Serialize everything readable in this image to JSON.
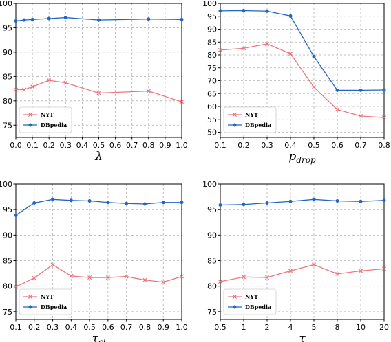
{
  "chart_data": [
    {
      "type": "line",
      "xlabel": "λ",
      "xlabel_sub": "",
      "x": [
        0.0,
        0.05,
        0.1,
        0.2,
        0.3,
        0.5,
        0.8,
        1.0
      ],
      "xlim": [
        0.0,
        1.0
      ],
      "xticks": [
        "0.0",
        "0.1",
        "0.2",
        "0.3",
        "0.4",
        "0.5",
        "0.6",
        "0.7",
        "0.8",
        "0.9",
        "1.0"
      ],
      "xtick_values": [
        0.0,
        0.1,
        0.2,
        0.3,
        0.4,
        0.5,
        0.6,
        0.7,
        0.8,
        0.9,
        1.0
      ],
      "ylim": [
        72.5,
        100
      ],
      "yticks": [
        75,
        80,
        85,
        90,
        95,
        100
      ],
      "grid": true,
      "legend_position": "lower-left",
      "series": [
        {
          "name": "NYT",
          "values": [
            82.3,
            82.3,
            82.9,
            84.2,
            83.7,
            81.6,
            82.0,
            79.8
          ]
        },
        {
          "name": "DBpedia",
          "values": [
            96.4,
            96.6,
            96.7,
            96.9,
            97.1,
            96.6,
            96.8,
            96.7
          ]
        }
      ]
    },
    {
      "type": "line",
      "xlabel": "p",
      "xlabel_sub": "drop",
      "x": [
        0.1,
        0.2,
        0.3,
        0.4,
        0.5,
        0.6,
        0.7,
        0.8
      ],
      "xlim": [
        0.1,
        0.8
      ],
      "xticks": [
        "0.1",
        "0.2",
        "0.3",
        "0.4",
        "0.5",
        "0.6",
        "0.7",
        "0.8"
      ],
      "xtick_values": [
        0.1,
        0.2,
        0.3,
        0.4,
        0.5,
        0.6,
        0.7,
        0.8
      ],
      "ylim": [
        48,
        100
      ],
      "yticks": [
        50,
        55,
        60,
        65,
        70,
        75,
        80,
        85,
        90,
        95,
        100
      ],
      "grid": true,
      "legend_position": "lower-left",
      "series": [
        {
          "name": "NYT",
          "values": [
            81.9,
            82.6,
            84.3,
            80.5,
            67.5,
            58.8,
            56.3,
            55.7
          ]
        },
        {
          "name": "DBpedia",
          "values": [
            97.1,
            97.2,
            97.0,
            95.1,
            79.4,
            66.3,
            66.3,
            66.4
          ]
        }
      ]
    },
    {
      "type": "line",
      "xlabel": "τ",
      "xlabel_sub": "cl",
      "x": [
        0.1,
        0.2,
        0.3,
        0.4,
        0.5,
        0.6,
        0.7,
        0.8,
        0.9,
        1.0
      ],
      "xlim": [
        0.1,
        1.0
      ],
      "xticks": [
        "0.1",
        "0.2",
        "0.3",
        "0.4",
        "0.5",
        "0.6",
        "0.7",
        "0.8",
        "0.9",
        "1.0"
      ],
      "xtick_values": [
        0.1,
        0.2,
        0.3,
        0.4,
        0.5,
        0.6,
        0.7,
        0.8,
        0.9,
        1.0
      ],
      "ylim": [
        73.5,
        100
      ],
      "yticks": [
        75,
        80,
        85,
        90,
        95,
        100
      ],
      "grid": true,
      "legend_position": "lower-left",
      "series": [
        {
          "name": "NYT",
          "values": [
            79.9,
            81.6,
            84.2,
            82.0,
            81.7,
            81.7,
            81.9,
            81.2,
            80.8,
            81.9
          ]
        },
        {
          "name": "DBpedia",
          "values": [
            93.9,
            96.3,
            97.0,
            96.8,
            96.7,
            96.4,
            96.2,
            96.1,
            96.4,
            96.4
          ]
        }
      ]
    },
    {
      "type": "line",
      "xlabel": "τ",
      "xlabel_sub": "",
      "x": [
        "0.5",
        "1",
        "2",
        "4",
        "5",
        "8",
        "10",
        "20"
      ],
      "xlim": [
        0,
        7
      ],
      "xticks": [
        "0.5",
        "1",
        "2",
        "4",
        "5",
        "8",
        "10",
        "20"
      ],
      "xtick_values": [
        0,
        1,
        2,
        3,
        4,
        5,
        6,
        7
      ],
      "ylim": [
        73.5,
        100
      ],
      "yticks": [
        75,
        80,
        85,
        90,
        95,
        100
      ],
      "grid": true,
      "legend_position": "lower-left",
      "series": [
        {
          "name": "NYT",
          "values": [
            80.9,
            81.8,
            81.7,
            83.0,
            84.2,
            82.4,
            83.0,
            83.4
          ]
        },
        {
          "name": "DBpedia",
          "values": [
            95.9,
            96.0,
            96.3,
            96.6,
            97.0,
            96.7,
            96.6,
            96.8
          ]
        }
      ]
    }
  ],
  "colors": {
    "NYT": "#f0737f",
    "DBpedia": "#2166c4"
  }
}
